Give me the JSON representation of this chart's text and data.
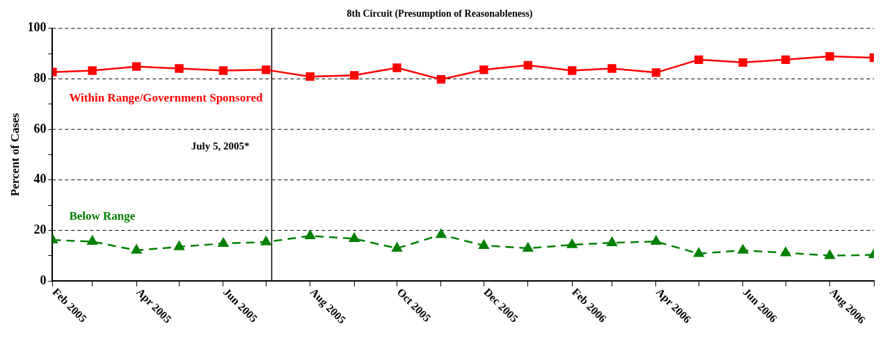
{
  "chart_data": {
    "type": "line",
    "title": "8th Circuit (Presumption of Reasonableness)",
    "ylabel": "Percent of Cases",
    "x": [
      "2005-02",
      "2005-03",
      "2005-04",
      "2005-05",
      "2005-06",
      "2005-07",
      "2005-08",
      "2005-09",
      "2005-10",
      "2005-11",
      "2005-12",
      "2006-01",
      "2006-02",
      "2006-03",
      "2006-04",
      "2006-05",
      "2006-06",
      "2006-07",
      "2006-08",
      "2006-09"
    ],
    "series": [
      {
        "name": "Within Range/Government Sponsored",
        "color": "#ff0000",
        "marker": "square",
        "line_style": "solid",
        "values": [
          82.7,
          83.3,
          84.9,
          84.1,
          83.3,
          83.6,
          80.9,
          81.4,
          84.4,
          79.8,
          83.6,
          85.4,
          83.3,
          84.1,
          82.5,
          87.6,
          86.5,
          87.6,
          88.9,
          88.4
        ]
      },
      {
        "name": "Below Range",
        "color": "#008000",
        "marker": "triangle",
        "line_style": "dashed",
        "values": [
          16.2,
          15.6,
          12.1,
          13.5,
          14.8,
          15.4,
          17.8,
          16.7,
          12.9,
          18.3,
          14.0,
          12.9,
          14.3,
          15.1,
          15.6,
          10.8,
          12.1,
          11.1,
          10.0,
          10.3
        ]
      }
    ],
    "xlim": [
      "2005-02",
      "2006-09"
    ],
    "xticks": [
      {
        "value": "2005-02",
        "label": "Feb 2005"
      },
      {
        "value": "2005-03",
        "label": null
      },
      {
        "value": "2005-04",
        "label": "Apr 2005"
      },
      {
        "value": "2005-05",
        "label": null
      },
      {
        "value": "2005-06",
        "label": "Jun 2005"
      },
      {
        "value": "2005-07",
        "label": null
      },
      {
        "value": "2005-08",
        "label": "Aug 2005"
      },
      {
        "value": "2005-09",
        "label": null
      },
      {
        "value": "2005-10",
        "label": "Oct 2005"
      },
      {
        "value": "2005-11",
        "label": null
      },
      {
        "value": "2005-12",
        "label": "Dec 2005"
      },
      {
        "value": "2006-01",
        "label": null
      },
      {
        "value": "2006-02",
        "label": "Feb 2006"
      },
      {
        "value": "2006-03",
        "label": null
      },
      {
        "value": "2006-04",
        "label": "Apr 2006"
      },
      {
        "value": "2006-05",
        "label": null
      },
      {
        "value": "2006-06",
        "label": "Jun 2006"
      },
      {
        "value": "2006-07",
        "label": null
      },
      {
        "value": "2006-08",
        "label": "Aug 2006"
      },
      {
        "value": "2006-09",
        "label": null
      }
    ],
    "ylim": [
      0,
      100
    ],
    "yticks": [
      0,
      {
        "value": 10,
        "label": null
      },
      20,
      {
        "value": 30,
        "label": null
      },
      40,
      {
        "value": 50,
        "label": null
      },
      60,
      {
        "value": 70,
        "label": null
      },
      80,
      {
        "value": 90,
        "label": null
      },
      100
    ],
    "grid": "y",
    "legend": false,
    "ref_lines": [
      {
        "axis": "x",
        "value": "2005-07-05",
        "label": "July 5, 2005*",
        "color": "#000000",
        "line_style": "solid"
      }
    ]
  }
}
